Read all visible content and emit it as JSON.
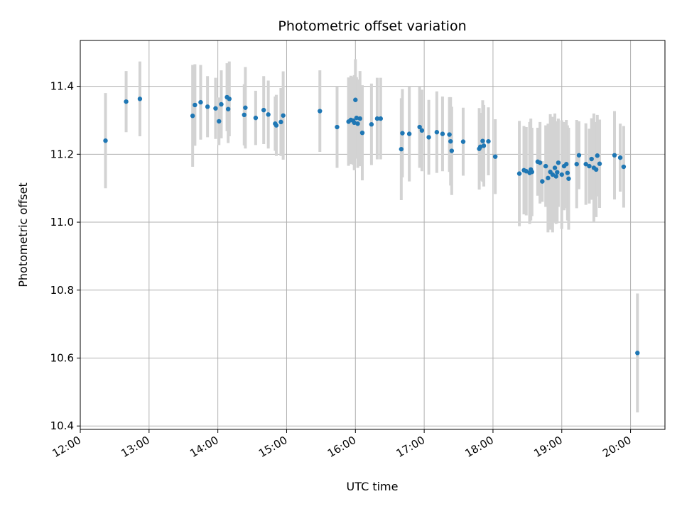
{
  "chart_data": {
    "type": "scatter",
    "title": "Photometric offset variation",
    "xlabel": "UTC time",
    "ylabel": "Photometric offset",
    "xlim": [
      "12:00",
      "20:30"
    ],
    "ylim": [
      10.39,
      11.535
    ],
    "grid": true,
    "x_ticks": [
      "12:00",
      "13:00",
      "14:00",
      "15:00",
      "16:00",
      "17:00",
      "18:00",
      "19:00",
      "20:00"
    ],
    "y_ticks": [
      "10.4",
      "10.6",
      "10.8",
      "11.0",
      "11.2",
      "11.4"
    ],
    "colors": {
      "point": "#1f77b4",
      "errorbar": "#d3d3d3",
      "grid": "#b0b0b0"
    },
    "series": [
      {
        "x": [
          "12:22",
          "12:40",
          "12:52",
          "13:38",
          "13:40",
          "13:45",
          "13:51",
          "13:58",
          "14:01",
          "14:03",
          "14:08",
          "14:09",
          "14:10",
          "14:23",
          "14:24",
          "14:33",
          "14:40",
          "14:44",
          "14:50",
          "14:51",
          "14:55",
          "14:57",
          "15:29",
          "15:44",
          "15:54",
          "15:56",
          "15:58",
          "15:59",
          "16:00",
          "16:01",
          "16:02",
          "16:04",
          "16:06",
          "16:14",
          "16:19",
          "16:22",
          "16:40",
          "16:41",
          "16:47",
          "16:56",
          "16:58",
          "17:04",
          "17:11",
          "17:16",
          "17:22",
          "17:23",
          "17:24",
          "17:34",
          "17:48",
          "17:49",
          "17:51",
          "17:52",
          "17:56",
          "18:02",
          "18:23",
          "18:27",
          "18:29",
          "18:32",
          "18:33",
          "18:34",
          "18:39",
          "18:41",
          "18:43",
          "18:46",
          "18:48",
          "18:50",
          "18:52",
          "18:54",
          "18:55",
          "18:56",
          "18:57",
          "19:00",
          "19:02",
          "19:04",
          "19:05",
          "19:06",
          "19:13",
          "19:15",
          "19:21",
          "19:24",
          "19:26",
          "19:28",
          "19:30",
          "19:31",
          "19:33",
          "19:46",
          "19:51",
          "19:54",
          "20:06"
        ],
        "y": [
          11.24,
          11.355,
          11.363,
          11.313,
          11.345,
          11.353,
          11.34,
          11.335,
          11.297,
          11.347,
          11.368,
          11.333,
          11.363,
          11.316,
          11.337,
          11.307,
          11.33,
          11.317,
          11.29,
          11.285,
          11.295,
          11.314,
          11.327,
          11.28,
          11.296,
          11.301,
          11.299,
          11.293,
          11.36,
          11.307,
          11.29,
          11.305,
          11.263,
          11.288,
          11.305,
          11.305,
          11.215,
          11.262,
          11.26,
          11.28,
          11.27,
          11.25,
          11.265,
          11.26,
          11.258,
          11.238,
          11.21,
          11.237,
          11.216,
          11.222,
          11.239,
          11.225,
          11.238,
          11.193,
          11.143,
          11.153,
          11.15,
          11.145,
          11.155,
          11.148,
          11.178,
          11.175,
          11.12,
          11.165,
          11.13,
          11.148,
          11.14,
          11.16,
          11.135,
          11.147,
          11.175,
          11.14,
          11.165,
          11.171,
          11.145,
          11.128,
          11.171,
          11.197,
          11.171,
          11.165,
          11.186,
          11.16,
          11.155,
          11.196,
          11.172,
          11.197,
          11.19,
          11.163,
          10.615
        ],
        "error": [
          0.14,
          0.09,
          0.11,
          0.15,
          0.12,
          0.11,
          0.09,
          0.09,
          0.07,
          0.1,
          0.1,
          0.1,
          0.11,
          0.09,
          0.12,
          0.08,
          0.1,
          0.1,
          0.08,
          0.09,
          0.1,
          0.13,
          0.12,
          0.12,
          0.13,
          0.13,
          0.13,
          0.14,
          0.12,
          0.12,
          0.13,
          0.14,
          0.14,
          0.12,
          0.12,
          0.12,
          0.15,
          0.13,
          0.14,
          0.12,
          0.12,
          0.11,
          0.12,
          0.11,
          0.11,
          0.13,
          0.13,
          0.1,
          0.12,
          0.1,
          0.12,
          0.12,
          0.1,
          0.11,
          0.155,
          0.13,
          0.13,
          0.15,
          0.15,
          0.13,
          0.1,
          0.12,
          0.06,
          0.12,
          0.16,
          0.17,
          0.17,
          0.16,
          0.14,
          0.15,
          0.13,
          0.16,
          0.13,
          0.13,
          0.14,
          0.15,
          0.13,
          0.1,
          0.12,
          0.11,
          0.12,
          0.16,
          0.14,
          0.12,
          0.13,
          0.13,
          0.1,
          0.12,
          0.175
        ]
      }
    ]
  }
}
